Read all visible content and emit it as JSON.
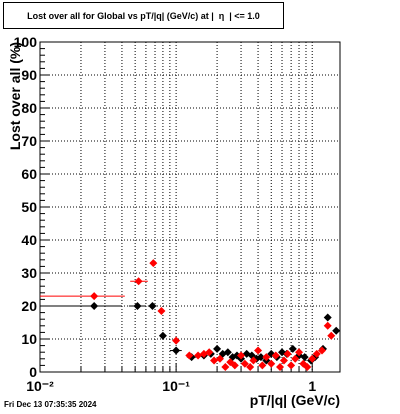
{
  "title": "Lost over all for Global vs pT/|q| (GeV/c) at |  η  | <= 1.0",
  "footer": "Fri Dec 13 07:35:35 2024",
  "chart_data": {
    "type": "scatter",
    "title": "Lost over all for Global vs pT/|q| (GeV/c) at |  η  | <= 1.0",
    "xlabel": "pT/|q| (GeV/c)",
    "ylabel": "Lost over all (%)",
    "xscale": "log",
    "xlim": [
      0.01,
      1.6
    ],
    "ylim": [
      0,
      100
    ],
    "x_tick_labels": [
      "10⁻²",
      "10⁻¹",
      "1"
    ],
    "y_tick_labels": [
      "0",
      "10",
      "20",
      "30",
      "40",
      "50",
      "60",
      "70",
      "80",
      "90",
      "100"
    ],
    "grid": true,
    "series": [
      {
        "color": "#000000",
        "points": [
          {
            "x": 0.025,
            "y": 20,
            "xlo": 0.01,
            "xhi": 0.04
          },
          {
            "x": 0.052,
            "y": 20,
            "xlo": 0.045,
            "xhi": 0.06
          },
          {
            "x": 0.067,
            "y": 20,
            "xlo": 0.062,
            "xhi": 0.072
          },
          {
            "x": 0.08,
            "y": 11
          },
          {
            "x": 0.1,
            "y": 6.5,
            "xlo": 0.09,
            "xhi": 0.11
          },
          {
            "x": 0.13,
            "y": 4.5,
            "xlo": 0.12,
            "xhi": 0.14
          },
          {
            "x": 0.16,
            "y": 5
          },
          {
            "x": 0.18,
            "y": 5.5
          },
          {
            "x": 0.2,
            "y": 7
          },
          {
            "x": 0.22,
            "y": 5.5
          },
          {
            "x": 0.24,
            "y": 6
          },
          {
            "x": 0.26,
            "y": 4.5
          },
          {
            "x": 0.28,
            "y": 5
          },
          {
            "x": 0.3,
            "y": 4
          },
          {
            "x": 0.33,
            "y": 5.5
          },
          {
            "x": 0.36,
            "y": 5
          },
          {
            "x": 0.39,
            "y": 4
          },
          {
            "x": 0.42,
            "y": 4.5
          },
          {
            "x": 0.46,
            "y": 3.5
          },
          {
            "x": 0.5,
            "y": 5.5
          },
          {
            "x": 0.55,
            "y": 4.5
          },
          {
            "x": 0.6,
            "y": 6
          },
          {
            "x": 0.65,
            "y": 5.5
          },
          {
            "x": 0.72,
            "y": 7
          },
          {
            "x": 0.8,
            "y": 5
          },
          {
            "x": 0.88,
            "y": 4.5
          },
          {
            "x": 0.98,
            "y": 3.5
          },
          {
            "x": 1.05,
            "y": 4.5
          },
          {
            "x": 1.2,
            "y": 7
          },
          {
            "x": 1.3,
            "y": 16.5
          },
          {
            "x": 1.5,
            "y": 12.5
          }
        ]
      },
      {
        "color": "#ff0000",
        "points": [
          {
            "x": 0.025,
            "y": 23,
            "xlo": 0.01,
            "xhi": 0.042
          },
          {
            "x": 0.053,
            "y": 27.5,
            "xlo": 0.046,
            "xhi": 0.062
          },
          {
            "x": 0.068,
            "y": 33
          },
          {
            "x": 0.078,
            "y": 18.5
          },
          {
            "x": 0.1,
            "y": 9.5
          },
          {
            "x": 0.125,
            "y": 5
          },
          {
            "x": 0.145,
            "y": 5
          },
          {
            "x": 0.16,
            "y": 5.5
          },
          {
            "x": 0.175,
            "y": 6
          },
          {
            "x": 0.19,
            "y": 3.5
          },
          {
            "x": 0.21,
            "y": 4
          },
          {
            "x": 0.23,
            "y": 1.5
          },
          {
            "x": 0.25,
            "y": 3
          },
          {
            "x": 0.27,
            "y": 2
          },
          {
            "x": 0.3,
            "y": 5
          },
          {
            "x": 0.32,
            "y": 2.5
          },
          {
            "x": 0.35,
            "y": 1.5
          },
          {
            "x": 0.37,
            "y": 3.5
          },
          {
            "x": 0.4,
            "y": 6.5
          },
          {
            "x": 0.43,
            "y": 2
          },
          {
            "x": 0.46,
            "y": 4.5
          },
          {
            "x": 0.5,
            "y": 2.5
          },
          {
            "x": 0.54,
            "y": 5
          },
          {
            "x": 0.58,
            "y": 1.5
          },
          {
            "x": 0.62,
            "y": 3.5
          },
          {
            "x": 0.66,
            "y": 5.5
          },
          {
            "x": 0.7,
            "y": 2
          },
          {
            "x": 0.75,
            "y": 4
          },
          {
            "x": 0.8,
            "y": 6
          },
          {
            "x": 0.86,
            "y": 2.5
          },
          {
            "x": 0.92,
            "y": 1.5
          },
          {
            "x": 1.0,
            "y": 4
          },
          {
            "x": 1.08,
            "y": 5.5
          },
          {
            "x": 1.18,
            "y": 6.5
          },
          {
            "x": 1.3,
            "y": 14
          },
          {
            "x": 1.38,
            "y": 11
          }
        ]
      }
    ]
  }
}
